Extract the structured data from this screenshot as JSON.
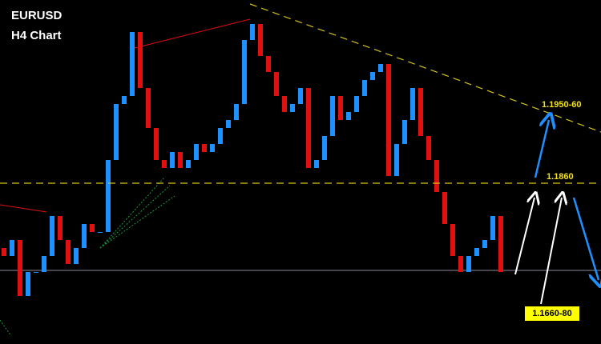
{
  "chart_data": {
    "type": "candlestick",
    "title": "EURUSD",
    "subtitle": "H4 Chart",
    "ylim": [
      1.1659,
      1.2089
    ],
    "up_color": "#1e90ff",
    "down_color": "#e01010",
    "open": [
      1.1779,
      1.1769,
      1.1789,
      1.1719,
      1.1749,
      1.1749,
      1.1769,
      1.1819,
      1.1789,
      1.1759,
      1.1779,
      1.1809,
      1.1799,
      1.1799,
      1.1889,
      1.1959,
      1.1969,
      1.2049,
      1.1979,
      1.1929,
      1.1889,
      1.1879,
      1.1899,
      1.1879,
      1.1889,
      1.1909,
      1.1899,
      1.1909,
      1.1929,
      1.1939,
      1.1959,
      1.2039,
      1.2059,
      1.2019,
      1.1999,
      1.1969,
      1.1949,
      1.1959,
      1.1979,
      1.1879,
      1.1889,
      1.1919,
      1.1969,
      1.1939,
      1.1949,
      1.1969,
      1.1989,
      1.1999,
      1.2009,
      1.1869,
      1.1909,
      1.1939,
      1.1979,
      1.1919,
      1.1889,
      1.1849,
      1.1809,
      1.1769,
      1.1749,
      1.1769,
      1.1779,
      1.1789,
      1.1819
    ],
    "close": [
      1.1769,
      1.1789,
      1.1719,
      1.1749,
      1.1749,
      1.1769,
      1.1819,
      1.1789,
      1.1759,
      1.1779,
      1.1809,
      1.1799,
      1.1799,
      1.1889,
      1.1959,
      1.1969,
      1.2049,
      1.1979,
      1.1929,
      1.1889,
      1.1879,
      1.1899,
      1.1879,
      1.1889,
      1.1909,
      1.1899,
      1.1909,
      1.1929,
      1.1939,
      1.1959,
      1.2039,
      1.2059,
      1.2019,
      1.1999,
      1.1969,
      1.1949,
      1.1959,
      1.1979,
      1.1879,
      1.1889,
      1.1919,
      1.1969,
      1.1939,
      1.1949,
      1.1969,
      1.1989,
      1.1999,
      1.2009,
      1.1869,
      1.1909,
      1.1939,
      1.1979,
      1.1919,
      1.1889,
      1.1849,
      1.1809,
      1.1769,
      1.1749,
      1.1769,
      1.1779,
      1.1789,
      1.1819,
      1.1749
    ],
    "levels": [
      {
        "value": 1.186,
        "label": "1.1860"
      }
    ],
    "annotations": [
      "1.1950-60",
      "1.1660-80"
    ]
  }
}
